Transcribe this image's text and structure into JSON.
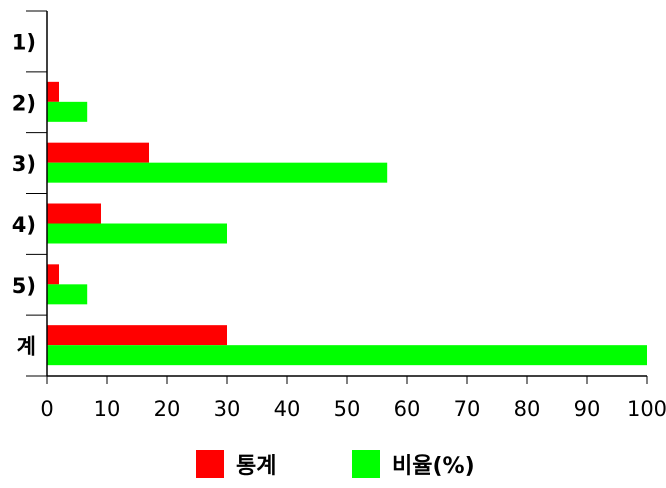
{
  "chart_data": {
    "type": "bar",
    "orientation": "horizontal",
    "categories": [
      "1)",
      "2)",
      "3)",
      "4)",
      "5)",
      "계"
    ],
    "series": [
      {
        "name": "통계",
        "color": "#ff0000",
        "values": [
          0,
          2,
          17,
          9,
          2,
          30
        ]
      },
      {
        "name": "비율(%)",
        "color": "#00ff00",
        "values": [
          0,
          6.7,
          56.7,
          30,
          6.7,
          100
        ]
      }
    ],
    "xlim": [
      0,
      100
    ],
    "xticks": [
      0,
      10,
      20,
      30,
      40,
      50,
      60,
      70,
      80,
      90,
      100
    ],
    "grid": false,
    "legend_position": "bottom"
  }
}
